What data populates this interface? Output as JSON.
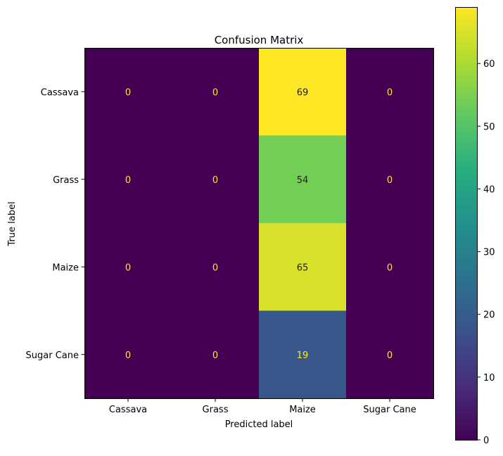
{
  "chart_data": {
    "type": "heatmap",
    "title": "Confusion Matrix",
    "xlabel": "Predicted label",
    "ylabel": "True label",
    "x_categories": [
      "Cassava",
      "Grass",
      "Maize",
      "Sugar Cane"
    ],
    "y_categories": [
      "Cassava",
      "Grass",
      "Maize",
      "Sugar Cane"
    ],
    "values": [
      [
        0,
        0,
        69,
        0
      ],
      [
        0,
        0,
        54,
        0
      ],
      [
        0,
        0,
        65,
        0
      ],
      [
        0,
        0,
        19,
        0
      ]
    ],
    "colormap": "viridis",
    "vmin": 0,
    "vmax": 69,
    "colorbar_ticks": [
      0,
      10,
      20,
      30,
      40,
      50,
      60
    ],
    "grid": false
  }
}
